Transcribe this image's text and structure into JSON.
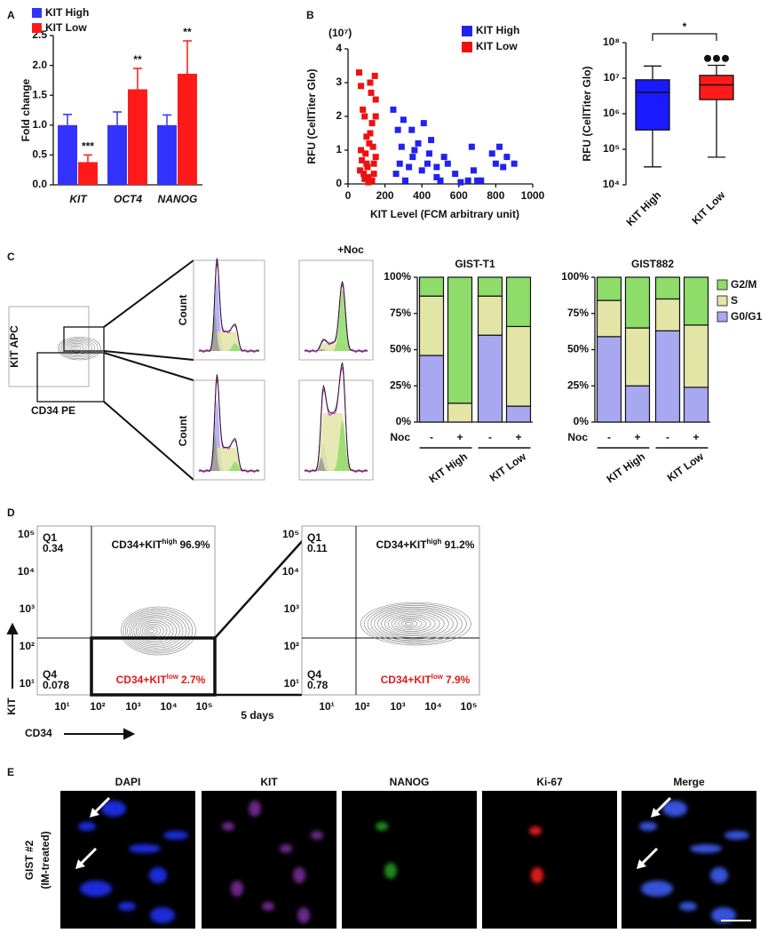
{
  "panel_labels": [
    "A",
    "B",
    "C",
    "D",
    "E"
  ],
  "chart_data": [
    {
      "type": "bar",
      "ylabel": "Fold change",
      "categories": [
        "KIT",
        "OCT4",
        "NANOG"
      ],
      "series": [
        {
          "name": "KIT High",
          "color": "#3333ff",
          "values": [
            1,
            1,
            1
          ],
          "errors": [
            0.18,
            0.22,
            0.17
          ]
        },
        {
          "name": "KIT Low",
          "color": "#ff1a1a",
          "values": [
            0.38,
            1.6,
            1.86
          ],
          "errors": [
            0.12,
            0.35,
            0.55
          ],
          "significance": [
            "***",
            "**",
            "**"
          ]
        }
      ],
      "ylim": [
        0,
        2.5
      ],
      "yticks": [
        {
          "value": 0,
          "label": "0.0"
        },
        0.5,
        {
          "value": 1,
          "label": "1.0"
        },
        1.5,
        {
          "value": 2,
          "label": "2.0"
        },
        2.5
      ],
      "legend": "upper left"
    },
    {
      "type": "scatter",
      "y_unit": "(10⁷)",
      "xlabel": "KIT Level (FCM arbitrary unit)",
      "ylabel": "RFU (CellTiter Glo)",
      "series": [
        {
          "name": "KIT High",
          "color": "#2222ee",
          "x": [
            245,
            260,
            280,
            290,
            300,
            310,
            330,
            345,
            350,
            360,
            380,
            400,
            410,
            430,
            440,
            450,
            480,
            500,
            520,
            540,
            580,
            610,
            650,
            670,
            680,
            700,
            720,
            780,
            800,
            820,
            840,
            860,
            900,
            480,
            270
          ],
          "y": [
            2.2,
            0.3,
            0.6,
            1.1,
            1.9,
            0.1,
            0.5,
            1.6,
            0.8,
            1.0,
            1.2,
            0.4,
            1.8,
            0.6,
            0.9,
            1.3,
            0.2,
            0.1,
            0.8,
            0.6,
            0.3,
            0.05,
            0.1,
            1.1,
            0.4,
            0.1,
            0.1,
            0.9,
            0.6,
            1.1,
            0.5,
            0.8,
            0.6,
            0.5,
            1.6
          ]
        },
        {
          "name": "KIT Low",
          "color": "#ee1111",
          "x": [
            60,
            70,
            80,
            90,
            70,
            75,
            85,
            95,
            100,
            105,
            110,
            115,
            120,
            125,
            130,
            135,
            140,
            145,
            150,
            150,
            130,
            110,
            90,
            140,
            120,
            100,
            65,
            150
          ],
          "y": [
            3.3,
            2.9,
            2.2,
            2.0,
            1.0,
            0.7,
            0.3,
            0.9,
            1.4,
            0.5,
            0.2,
            1.2,
            3.0,
            2.7,
            1.8,
            1.1,
            0.6,
            3.2,
            2.5,
            0.8,
            0.1,
            0.05,
            0.15,
            0.3,
            1.5,
            0.6,
            0.4,
            2.0
          ]
        }
      ],
      "xlim": [
        0,
        1000
      ],
      "xticks": [
        0,
        200,
        400,
        600,
        800,
        1000
      ],
      "ylim": [
        0,
        4
      ],
      "yticks": [
        0,
        1,
        2,
        3,
        4
      ],
      "legend": "upper right"
    },
    {
      "type": "box",
      "ylabel": "RFU (CellTiter Glo)",
      "log_scale": true,
      "categories": [
        "KIT High",
        "KIT Low"
      ],
      "boxes": [
        {
          "color": "#1a1aff",
          "min": 32000,
          "q1": 350000,
          "median": 4000000,
          "q3": 9000000,
          "max": 22000000,
          "outliers": []
        },
        {
          "color": "#ff1a1a",
          "min": 60000,
          "q1": 2500000,
          "median": 6500000,
          "q3": 12000000,
          "max": 23000000,
          "outliers": [
            36000000,
            36000000,
            36000000
          ]
        }
      ],
      "ylim": [
        10000,
        100000000
      ],
      "yticks": [
        {
          "value": 10000,
          "label": "10⁴"
        },
        {
          "value": 100000,
          "label": "10⁵"
        },
        {
          "value": 1000000,
          "label": "10⁶"
        },
        {
          "value": 10000000,
          "label": "10⁷"
        },
        {
          "value": 100000000,
          "label": "10⁸"
        }
      ],
      "significance": "*"
    },
    {
      "type": "stacked_bar",
      "title": "GIST-T1",
      "category_label": "Noc",
      "categories": [
        "-",
        "+",
        "-",
        "+"
      ],
      "groups": [
        "KIT High",
        "KIT Low"
      ],
      "series": [
        {
          "name": "G0/G1",
          "color": "#a8a8f0",
          "values": [
            46,
            0,
            60,
            11
          ]
        },
        {
          "name": "S",
          "color": "#e2e5a6",
          "values": [
            41,
            13,
            27,
            55
          ]
        },
        {
          "name": "G2/M",
          "color": "#8edc6a",
          "values": [
            13,
            87,
            13,
            34
          ]
        }
      ],
      "ylim": [
        0,
        100
      ],
      "yticks": [
        {
          "value": 0,
          "label": "0%"
        },
        {
          "value": 25,
          "label": "25%"
        },
        {
          "value": 50,
          "label": "50%"
        },
        {
          "value": 75,
          "label": "75%"
        },
        {
          "value": 100,
          "label": "100%"
        }
      ],
      "legend": false
    },
    {
      "type": "stacked_bar",
      "title": "GIST882",
      "category_label": "Noc",
      "categories": [
        "-",
        "+",
        "-",
        "+"
      ],
      "groups": [
        "KIT High",
        "KIT Low"
      ],
      "series": [
        {
          "name": "G0/G1",
          "color": "#a8a8f0",
          "values": [
            59,
            25,
            63,
            24
          ]
        },
        {
          "name": "S",
          "color": "#e2e5a6",
          "values": [
            25,
            40,
            22,
            43
          ]
        },
        {
          "name": "G2/M",
          "color": "#8edc6a",
          "values": [
            16,
            35,
            15,
            33
          ]
        }
      ],
      "ylim": [
        0,
        100
      ],
      "yticks": [
        {
          "value": 0,
          "label": "0%"
        },
        {
          "value": 25,
          "label": "25%"
        },
        {
          "value": 50,
          "label": "50%"
        },
        {
          "value": 75,
          "label": "75%"
        },
        {
          "value": 100,
          "label": "100%"
        }
      ],
      "legend": "right"
    }
  ],
  "panel_c": {
    "noc_label": "+Noc",
    "count_label": "Count",
    "ylabel": "KIT APC",
    "xlabel": "CD34 PE"
  },
  "panel_d": {
    "ylabel": "KIT",
    "xlabel": "CD34",
    "interval": "5 days",
    "ticks": [
      "10¹",
      "10²",
      "10³",
      "10⁴",
      "10⁵"
    ],
    "plots": [
      {
        "q1_name": "Q1",
        "q1_value": "0.34",
        "q4_name": "Q4",
        "q4_value": "0.078",
        "high": {
          "prefix": "CD34+KIT",
          "sup": "high",
          "value": "96.9%"
        },
        "low": {
          "prefix": "CD34+KIT",
          "sup": "low",
          "value": "2.7%"
        }
      },
      {
        "q1_name": "Q1",
        "q1_value": "0.11",
        "q4_name": "Q4",
        "q4_value": "0.78",
        "high": {
          "prefix": "CD34+KIT",
          "sup": "high",
          "value": "91.2%"
        },
        "low": {
          "prefix": "CD34+KIT",
          "sup": "low",
          "value": "7.9%"
        }
      }
    ]
  },
  "panel_e": {
    "columns": [
      "DAPI",
      "KIT",
      "NANOG",
      "Ki-67",
      "Merge"
    ],
    "row_label": "GIST #2",
    "row_sublabel": "(IM-treated)"
  }
}
